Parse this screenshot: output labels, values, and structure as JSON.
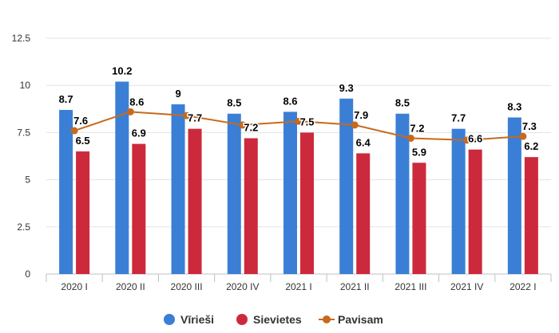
{
  "chart_data": {
    "type": "bar",
    "categories": [
      "2020 I",
      "2020 II",
      "2020 III",
      "2020 IV",
      "2021 I",
      "2021 II",
      "2021 III",
      "2021 IV",
      "2022 I"
    ],
    "series": [
      {
        "name": "Vīrieši",
        "kind": "bar",
        "color": "#3a7fd5",
        "values": [
          8.7,
          10.2,
          9,
          8.5,
          8.6,
          9.3,
          8.5,
          7.7,
          8.3
        ],
        "labels": [
          "8.7",
          "10.2",
          "9",
          "8.5",
          "8.6",
          "9.3",
          "8.5",
          "7.7",
          "8.3"
        ]
      },
      {
        "name": "Sievietes",
        "kind": "bar",
        "color": "#cc2a3c",
        "values": [
          6.5,
          6.9,
          7.7,
          7.2,
          7.5,
          6.4,
          5.9,
          6.6,
          6.2
        ],
        "labels": [
          "6.5",
          "6.9",
          "7.7",
          "7.2",
          "7.5",
          "6.4",
          "5.9",
          "6.6",
          "6.2"
        ]
      },
      {
        "name": "Pavisam",
        "kind": "line",
        "color": "#c8691c",
        "values": [
          7.6,
          8.6,
          8.4,
          7.9,
          8.1,
          7.9,
          7.2,
          7.1,
          7.3
        ],
        "labels": [
          "7.6",
          "8.6",
          "",
          "",
          "",
          "7.9",
          "7.2",
          "",
          "7.3"
        ]
      }
    ],
    "yticks": [
      "0",
      "2.5",
      "5",
      "7.5",
      "10",
      "12.5"
    ],
    "ylim": [
      0,
      12.5
    ],
    "grid": true,
    "legend_position": "bottom-center",
    "title": "",
    "xlabel": "",
    "ylabel": ""
  }
}
